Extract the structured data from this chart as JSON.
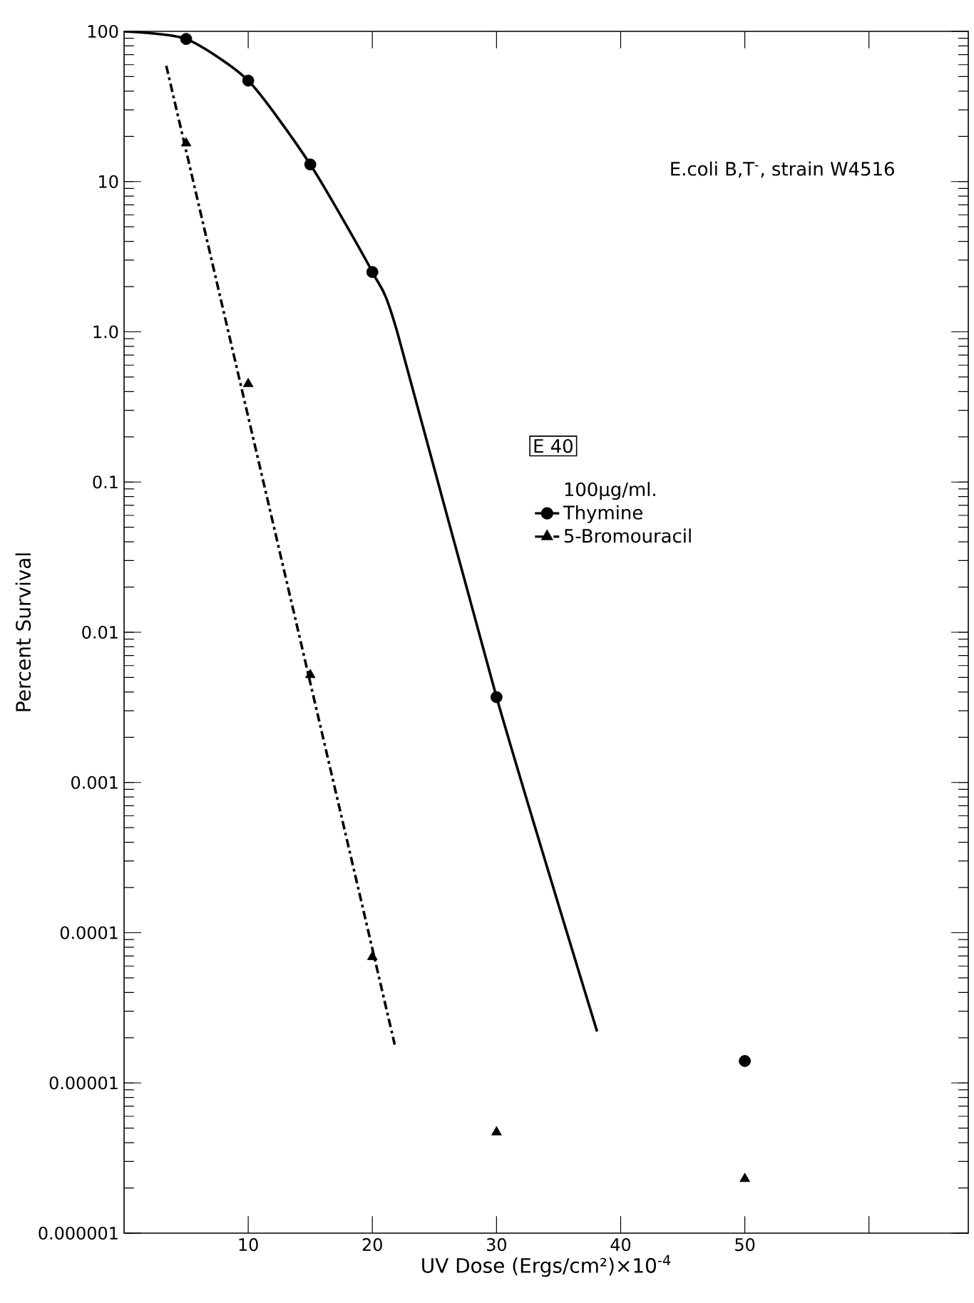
{
  "chart_data": {
    "type": "scatter",
    "xlabel": "UV Dose (Ergs/cm²)×10$^{-4}$",
    "ylabel": "Percent Survival",
    "legend_title": "100μg/ml.",
    "annotations": [
      "E.coli B,T$^{-}$, strain W4516",
      "E 40"
    ],
    "log": "y",
    "grid": false,
    "legend": "right",
    "xlim": [
      0,
      68
    ],
    "xticks": [
      10,
      20,
      30,
      40,
      50,
      {
        "value": 60,
        "label": null
      }
    ],
    "ylim": [
      1e-06,
      100
    ],
    "yticks": [
      {
        "value": 1e-06,
        "label": "0.000001"
      },
      {
        "value": 1e-05,
        "label": "0.00001"
      },
      {
        "value": 0.0001,
        "label": "0.0001"
      },
      {
        "value": 0.001,
        "label": "0.001"
      },
      {
        "value": 0.01,
        "label": "0.01"
      },
      {
        "value": 0.1,
        "label": "0.1"
      },
      {
        "value": 1,
        "label": "1.0"
      },
      {
        "value": 10,
        "label": "10"
      },
      {
        "value": 100,
        "label": "100"
      }
    ],
    "series": [
      {
        "name": "Thymine",
        "marker": "circle",
        "line_style": "solid",
        "color": "#000000",
        "x": [
          5,
          10,
          15,
          20,
          30,
          50
        ],
        "values": [
          89,
          47,
          13,
          2.5,
          0.0037,
          1.4e-05
        ]
      },
      {
        "type": "line",
        "marker": "none",
        "line_style": "solid",
        "color": "#000000",
        "x": [
          0,
          5,
          10,
          15,
          20,
          22,
          30,
          38.1
        ],
        "values": [
          100,
          89,
          47,
          13,
          2.5,
          1.0,
          0.0037,
          2.2e-05
        ]
      },
      {
        "name": "5-Bromouracil",
        "marker": "triangle",
        "line_style": "dashdot",
        "color": "#000000",
        "x": [
          5,
          10,
          15,
          20,
          30,
          50
        ],
        "values": [
          18,
          0.45,
          0.0052,
          6.9e-05,
          4.7e-06,
          2.3e-06
        ]
      },
      {
        "type": "line",
        "marker": "none",
        "line_style": "dashdot",
        "color": "#000000",
        "x": [
          3.4,
          21.8
        ],
        "values": [
          59,
          1.8e-05
        ]
      }
    ]
  }
}
